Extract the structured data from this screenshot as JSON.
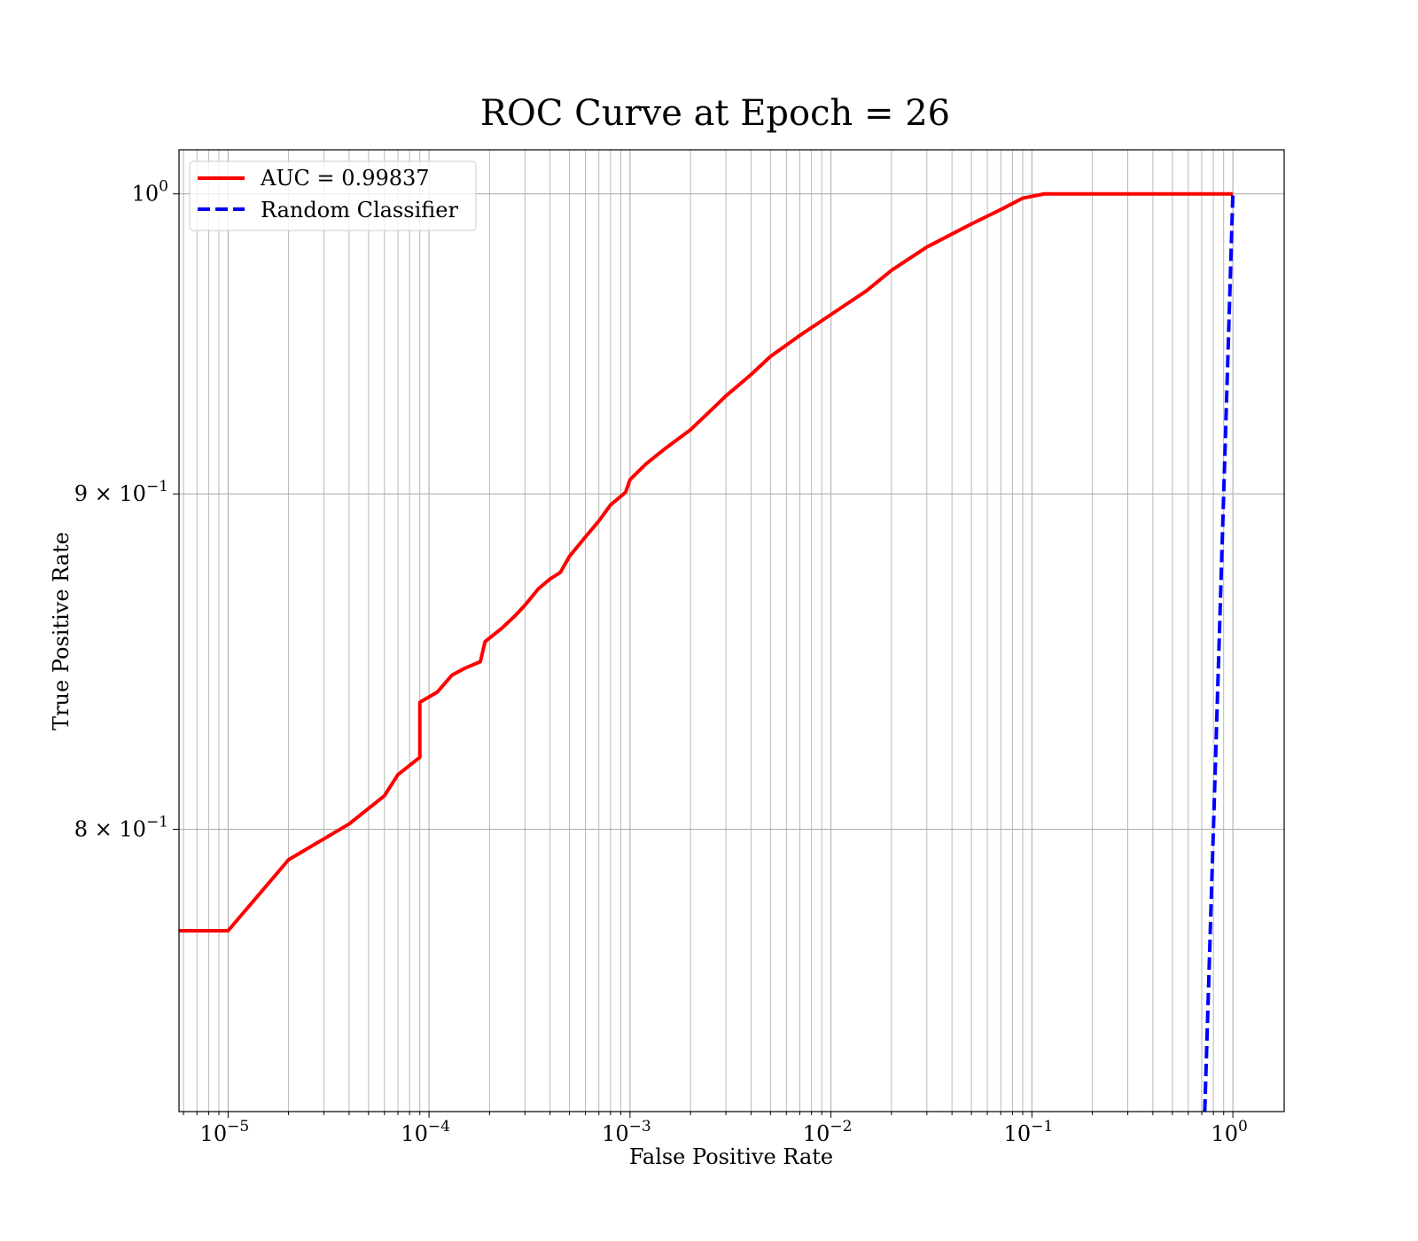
{
  "chart_data": {
    "type": "line",
    "title": "ROC Curve at Epoch = 26",
    "xlabel": "False Positive Rate",
    "ylabel": "True Positive Rate",
    "xscale": "log",
    "yscale": "log",
    "xlim": [
      5.7e-06,
      1.8
    ],
    "ylim": [
      0.7245,
      1.0156
    ],
    "grid": true,
    "grid_minor": true,
    "legend_position": "top-left",
    "x_ticks": [
      {
        "value": 1e-05,
        "base": "10",
        "exp": "−5"
      },
      {
        "value": 0.0001,
        "base": "10",
        "exp": "−4"
      },
      {
        "value": 0.001,
        "base": "10",
        "exp": "−3"
      },
      {
        "value": 0.01,
        "base": "10",
        "exp": "−2"
      },
      {
        "value": 0.1,
        "base": "10",
        "exp": "−1"
      },
      {
        "value": 1,
        "base": "10",
        "exp": "0"
      }
    ],
    "y_ticks": [
      {
        "value": 0.8,
        "base": "8 × 10",
        "exp": "−1"
      },
      {
        "value": 0.9,
        "base": "9 × 10",
        "exp": "−1"
      },
      {
        "value": 1.0,
        "base": "10",
        "exp": "0"
      }
    ],
    "series": [
      {
        "name": "AUC = 0.99837",
        "color": "#ff0000",
        "style": "solid",
        "points": [
          [
            5.7e-06,
            0.772
          ],
          [
            1e-05,
            0.772
          ],
          [
            2e-05,
            0.7915
          ],
          [
            4e-05,
            0.8015
          ],
          [
            6e-05,
            0.8095
          ],
          [
            7e-05,
            0.8155
          ],
          [
            9e-05,
            0.8205
          ],
          [
            9e-05,
            0.8365
          ],
          [
            0.00011,
            0.8395
          ],
          [
            0.00013,
            0.8445
          ],
          [
            0.00015,
            0.8465
          ],
          [
            0.00018,
            0.8485
          ],
          [
            0.00019,
            0.8545
          ],
          [
            0.00023,
            0.8585
          ],
          [
            0.00027,
            0.8625
          ],
          [
            0.0003,
            0.8655
          ],
          [
            0.00035,
            0.8705
          ],
          [
            0.0004,
            0.8735
          ],
          [
            0.00045,
            0.8755
          ],
          [
            0.0005,
            0.8805
          ],
          [
            0.0006,
            0.8865
          ],
          [
            0.0007,
            0.8915
          ],
          [
            0.0008,
            0.8965
          ],
          [
            0.00095,
            0.9005
          ],
          [
            0.001,
            0.9045
          ],
          [
            0.0012,
            0.9095
          ],
          [
            0.0015,
            0.9145
          ],
          [
            0.002,
            0.9205
          ],
          [
            0.0025,
            0.9265
          ],
          [
            0.003,
            0.9315
          ],
          [
            0.004,
            0.9385
          ],
          [
            0.005,
            0.9445
          ],
          [
            0.007,
            0.9515
          ],
          [
            0.01,
            0.9585
          ],
          [
            0.015,
            0.9665
          ],
          [
            0.02,
            0.9735
          ],
          [
            0.03,
            0.9815
          ],
          [
            0.05,
            0.9895
          ],
          [
            0.07,
            0.9945
          ],
          [
            0.09,
            0.9985
          ],
          [
            0.115,
            1.0
          ],
          [
            1.0,
            1.0
          ]
        ]
      },
      {
        "name": "Random Classifier",
        "color": "#0000ff",
        "style": "dashed",
        "points": [
          [
            0.7245,
            0.7245
          ],
          [
            1.0,
            1.0
          ]
        ]
      }
    ]
  }
}
